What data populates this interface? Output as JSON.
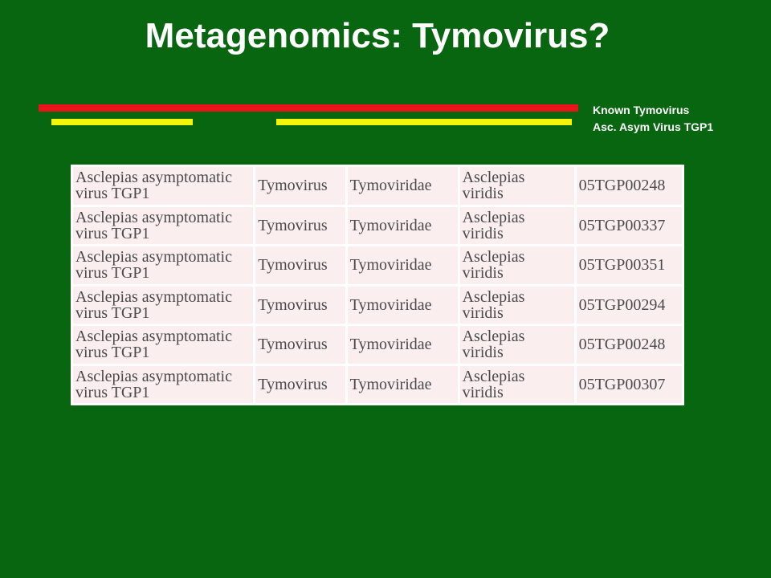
{
  "title": "Metagenomics: Tymovirus?",
  "legend": {
    "red_label": "Known Tymovirus",
    "yellow_label": "Asc. Asym Virus TGP1"
  },
  "colors": {
    "background": "#07660f",
    "red_bar": "#e8141a",
    "yellow_bar": "#f4f40a",
    "cell_background": "#fbeeee"
  },
  "table": {
    "rows": [
      {
        "virus": [
          "Asclepias asymptomatic",
          "virus TGP1"
        ],
        "genus": "Tymovirus",
        "family": "Tymoviridae",
        "host": [
          "Asclepias",
          "viridis"
        ],
        "sample": "05TGP00248"
      },
      {
        "virus": [
          "Asclepias asymptomatic",
          "virus TGP1"
        ],
        "genus": "Tymovirus",
        "family": "Tymoviridae",
        "host": [
          "Asclepias",
          "viridis"
        ],
        "sample": "05TGP00337"
      },
      {
        "virus": [
          "Asclepias asymptomatic",
          "virus TGP1"
        ],
        "genus": "Tymovirus",
        "family": "Tymoviridae",
        "host": [
          "Asclepias",
          "viridis"
        ],
        "sample": "05TGP00351"
      },
      {
        "virus": [
          "Asclepias asymptomatic",
          "virus TGP1"
        ],
        "genus": "Tymovirus",
        "family": "Tymoviridae",
        "host": [
          "Asclepias",
          "viridis"
        ],
        "sample": "05TGP00294"
      },
      {
        "virus": [
          "Asclepias asymptomatic",
          "virus TGP1"
        ],
        "genus": "Tymovirus",
        "family": "Tymoviridae",
        "host": [
          "Asclepias",
          "viridis"
        ],
        "sample": "05TGP00248"
      },
      {
        "virus": [
          "Asclepias asymptomatic",
          "virus TGP1"
        ],
        "genus": "Tymovirus",
        "family": "Tymoviridae",
        "host": [
          "Asclepias",
          "viridis"
        ],
        "sample": "05TGP00307"
      }
    ]
  }
}
